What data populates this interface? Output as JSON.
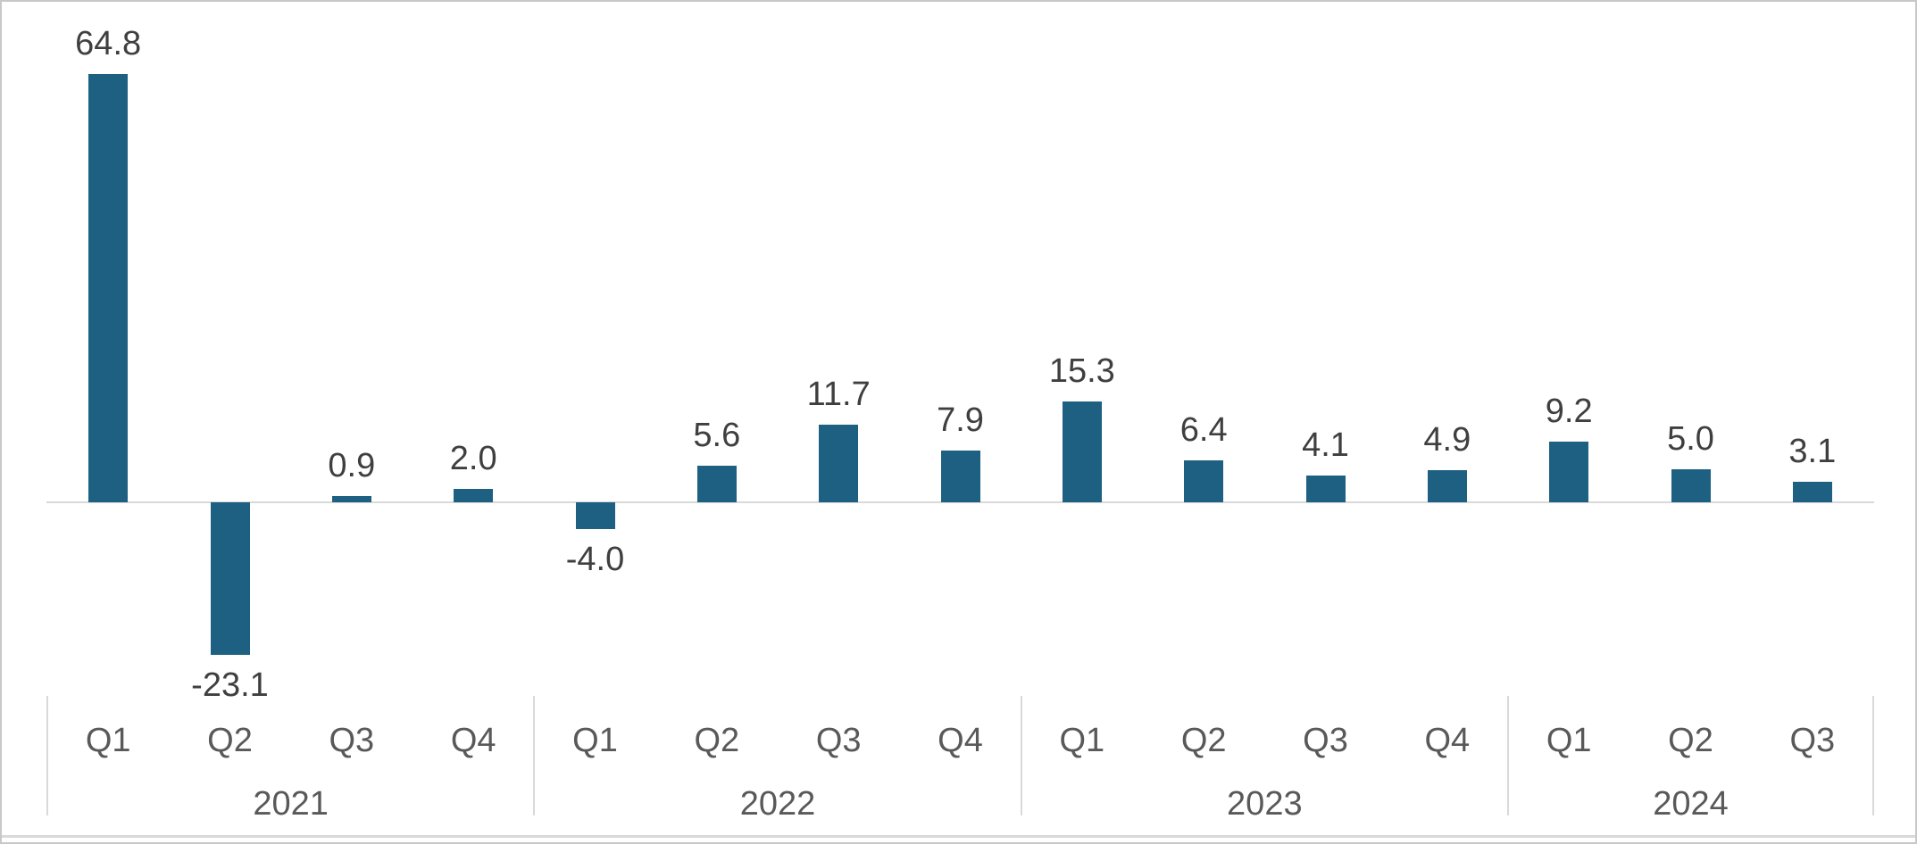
{
  "chart_data": {
    "type": "bar",
    "groups": [
      {
        "year": "2021",
        "quarters": [
          "Q1",
          "Q2",
          "Q3",
          "Q4"
        ],
        "values": [
          64.8,
          -23.1,
          0.9,
          2.0
        ]
      },
      {
        "year": "2022",
        "quarters": [
          "Q1",
          "Q2",
          "Q3",
          "Q4"
        ],
        "values": [
          -4.0,
          5.6,
          11.7,
          7.9
        ]
      },
      {
        "year": "2023",
        "quarters": [
          "Q1",
          "Q2",
          "Q3",
          "Q4"
        ],
        "values": [
          15.3,
          6.4,
          4.1,
          4.9
        ]
      },
      {
        "year": "2024",
        "quarters": [
          "Q1",
          "Q2",
          "Q3"
        ],
        "values": [
          9.2,
          5.0,
          3.1
        ]
      }
    ],
    "data_label_decimals": 1,
    "axis": {
      "y_axis_visible": false,
      "zero_line": true,
      "ylim_implied": [
        -25,
        66
      ],
      "legend": "none",
      "multi_level_category_axis": true
    },
    "colors": {
      "bar": "#1d6082",
      "data_label": "#3f3f3f",
      "axis_label": "#595959",
      "line": "#d9d9d9",
      "border": "#c8c8c8",
      "background": "#ffffff"
    }
  }
}
